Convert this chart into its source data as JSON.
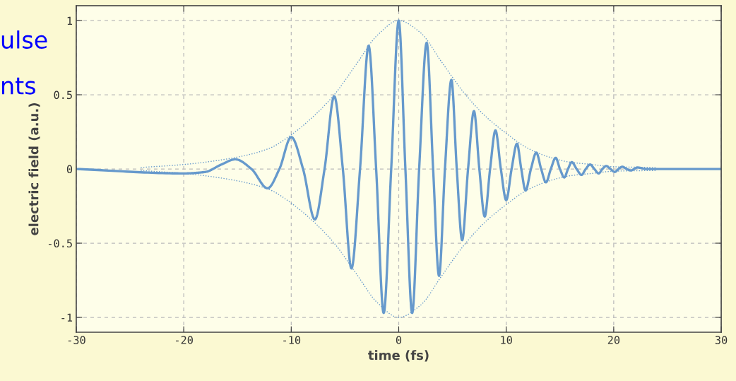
{
  "chart_data": {
    "type": "line",
    "xlabel": "time (fs)",
    "ylabel": "electric field (a.u.)",
    "annotations": [
      "ulse",
      "nts"
    ],
    "xlim": [
      -30,
      30
    ],
    "xticks": [
      -30,
      -20,
      -10,
      0,
      10,
      20,
      30
    ],
    "ylim": [
      -1.1,
      1.1
    ],
    "yticks": [
      -1,
      -0.5,
      0,
      0.5,
      1
    ],
    "grid": true,
    "legend": false,
    "series": [
      {
        "color": "#6699cc",
        "line_style": "solid",
        "x": [
          -30,
          -20,
          -18,
          -16.5,
          -15.2,
          -13.7,
          -12.2,
          -11.1,
          -10.0,
          -8.9,
          -7.8,
          -6.9,
          -6.0,
          -5.2,
          -4.4,
          -3.6,
          -2.8,
          -2.1,
          -1.4,
          -0.7,
          0,
          0.62,
          1.25,
          1.9,
          2.6,
          3.2,
          3.75,
          4.3,
          4.9,
          5.4,
          5.9,
          6.45,
          7.0,
          7.5,
          8.0,
          8.5,
          9.0,
          9.5,
          10.0,
          10.5,
          11.0,
          11.4,
          11.8,
          12.3,
          12.8,
          13.25,
          13.7,
          14.15,
          14.6,
          15.0,
          15.4,
          15.75,
          16.1,
          16.55,
          17.0,
          17.4,
          17.8,
          18.2,
          18.6,
          18.95,
          19.3,
          19.7,
          20.1,
          20.45,
          20.8,
          21.2,
          21.6,
          21.9,
          22.2,
          23,
          30
        ],
        "values": [
          0,
          -0.03,
          -0.02,
          0.03,
          0.065,
          0,
          -0.13,
          0,
          0.215,
          0,
          -0.34,
          0,
          0.49,
          0,
          -0.67,
          0,
          0.83,
          0,
          -0.97,
          0,
          1.0,
          0,
          -0.97,
          0,
          0.85,
          0,
          -0.72,
          0,
          0.6,
          0,
          -0.48,
          0,
          0.39,
          0,
          -0.32,
          0,
          0.26,
          0,
          -0.21,
          0,
          0.17,
          0,
          -0.145,
          0,
          0.11,
          0,
          -0.09,
          0,
          0.075,
          0,
          -0.057,
          0,
          0.046,
          0,
          -0.04,
          0,
          0.03,
          0,
          -0.03,
          0,
          0.02,
          0,
          -0.02,
          0,
          0.015,
          0,
          -0.01,
          0,
          0.01,
          0,
          0
        ]
      },
      {
        "color": "#6699cc",
        "line_style": "dotted",
        "x": [
          -24,
          -20,
          -15,
          -12,
          -10,
          -8,
          -6,
          -4,
          -2,
          0,
          2,
          4,
          6,
          8,
          10,
          12,
          14,
          16,
          18,
          20,
          24
        ],
        "values": [
          0.01,
          0.03,
          0.08,
          0.14,
          0.23,
          0.35,
          0.5,
          0.7,
          0.9,
          1.0,
          0.92,
          0.72,
          0.52,
          0.36,
          0.24,
          0.14,
          0.08,
          0.045,
          0.03,
          0.015,
          0.01
        ]
      },
      {
        "color": "#6699cc",
        "line_style": "dotted",
        "x": [
          -24,
          -20,
          -15,
          -12,
          -10,
          -8,
          -6,
          -4,
          -2,
          0,
          2,
          4,
          6,
          8,
          10,
          12,
          14,
          16,
          18,
          20,
          24
        ],
        "values": [
          -0.01,
          -0.03,
          -0.08,
          -0.14,
          -0.23,
          -0.35,
          -0.5,
          -0.7,
          -0.9,
          -1.0,
          -0.92,
          -0.72,
          -0.52,
          -0.36,
          -0.24,
          -0.14,
          -0.08,
          -0.045,
          -0.03,
          -0.015,
          -0.01
        ]
      }
    ]
  }
}
